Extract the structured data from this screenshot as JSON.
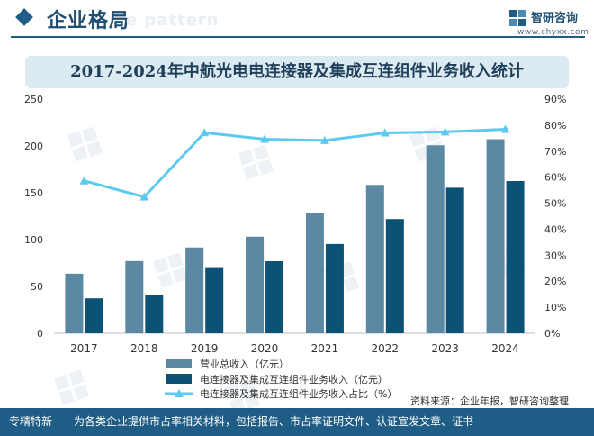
{
  "header": {
    "title": "企业格局",
    "watermark": "e pattern",
    "logo_name": "智研咨询",
    "logo_url": "www.chyxx.com"
  },
  "colors": {
    "bar_total": "#5b89a3",
    "bar_connector": "#0c5276",
    "line": "#5ccaf0",
    "header_blue": "#1f5d86",
    "title_band": "#dceaf2"
  },
  "chart_data": {
    "type": "bar",
    "title": "2017-2024年中航光电电连接器及集成互连组件业务收入统计",
    "categories": [
      "2017",
      "2018",
      "2019",
      "2020",
      "2021",
      "2022",
      "2023",
      "2024"
    ],
    "series": [
      {
        "name": "营业总收入（亿元）",
        "type": "bar",
        "axis": "left",
        "values": [
          63.6,
          77.1,
          91.6,
          103.1,
          128.6,
          158.4,
          200.7,
          207.2
        ]
      },
      {
        "name": "电连接器及集成互连组件业务收入（亿元）",
        "type": "bar",
        "axis": "left",
        "values": [
          37.3,
          40.4,
          70.6,
          76.9,
          95.3,
          121.9,
          155.4,
          162.5
        ]
      },
      {
        "name": "电连接器及集成互连组件业务收入占比（%）",
        "type": "line",
        "axis": "right",
        "values": [
          58.6,
          52.4,
          77.1,
          74.6,
          74.1,
          77.0,
          77.4,
          78.4
        ]
      }
    ],
    "y_left": {
      "min": 0,
      "max": 250,
      "ticks": [
        "0",
        "50",
        "100",
        "150",
        "200",
        "250"
      ]
    },
    "y_right": {
      "min": 0,
      "max": 90,
      "ticks": [
        "0%",
        "10%",
        "20%",
        "30%",
        "40%",
        "50%",
        "60%",
        "70%",
        "80%",
        "90%"
      ]
    },
    "grid": false,
    "legend_position": "bottom-left"
  },
  "source": "资料来源：企业年报，智研咨询整理",
  "footer": "专精特新——为各类企业提供市占率相关材料，包括报告、市占率证明文件、认证宣发文章、证书"
}
